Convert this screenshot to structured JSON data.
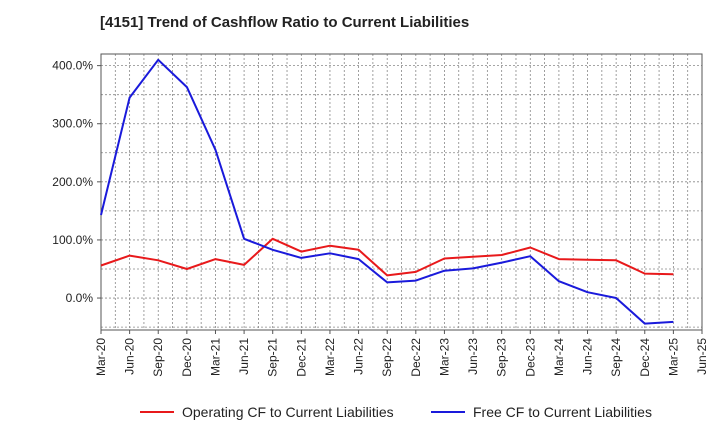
{
  "title": "[4151]  Trend of Cashflow Ratio to Current Liabilities",
  "chart_data": {
    "type": "line",
    "title": "[4151]  Trend of Cashflow Ratio to Current Liabilities",
    "xlabel": "",
    "ylabel": "",
    "categories": [
      "Mar-20",
      "Jun-20",
      "Sep-20",
      "Dec-20",
      "Mar-21",
      "Jun-21",
      "Sep-21",
      "Dec-21",
      "Mar-22",
      "Jun-22",
      "Sep-22",
      "Dec-22",
      "Mar-23",
      "Jun-23",
      "Sep-23",
      "Dec-23",
      "Mar-24",
      "Jun-24",
      "Sep-24",
      "Dec-24",
      "Mar-25",
      "Jun-25"
    ],
    "y_ticks": [
      "0.0%",
      "100.0%",
      "200.0%",
      "300.0%",
      "400.0%"
    ],
    "y_tick_values": [
      0,
      100,
      200,
      300,
      400
    ],
    "ylim": [
      -55,
      420
    ],
    "grid": true,
    "legend_position": "bottom",
    "series": [
      {
        "name": "Operating CF to Current Liabilities",
        "color": "#e8191b",
        "values": [
          56,
          73,
          65,
          50,
          67,
          57,
          102,
          80,
          90,
          83,
          39,
          45,
          68,
          71,
          74,
          87,
          67,
          66,
          65,
          42,
          41,
          null
        ]
      },
      {
        "name": "Free CF to Current Liabilities",
        "color": "#1a1adb",
        "values": [
          143,
          345,
          410,
          363,
          255,
          102,
          83,
          69,
          77,
          67,
          27,
          30,
          47,
          51,
          61,
          72,
          29,
          10,
          0,
          -44,
          -41,
          null
        ]
      }
    ]
  }
}
